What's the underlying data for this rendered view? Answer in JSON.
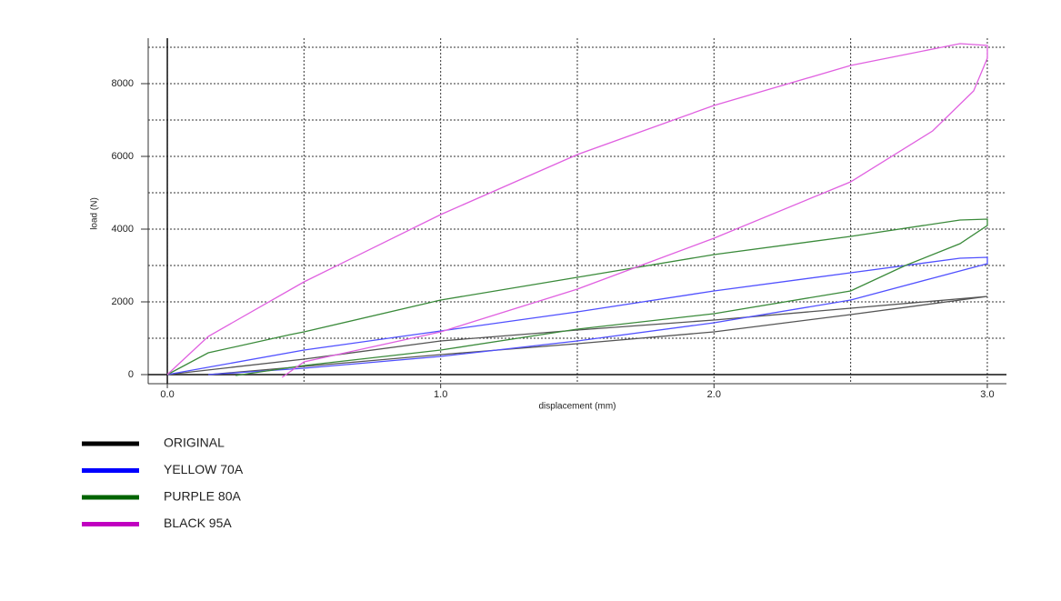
{
  "chart_data": {
    "type": "line",
    "x_label": "displacement (mm)",
    "y_label": "load (N)",
    "xlim": [
      -0.07,
      3.07
    ],
    "ylim": [
      -250,
      9250
    ],
    "xticks": [
      {
        "value": 0,
        "label": "0.0"
      },
      {
        "value": 1,
        "label": "1.0"
      },
      {
        "value": 2,
        "label": "2.0"
      },
      {
        "value": 3,
        "label": "3.0"
      }
    ],
    "yticks": [
      0,
      2000,
      4000,
      6000,
      8000
    ],
    "xminor": [
      0.5,
      1.5,
      2.5
    ],
    "yminor": [
      1000,
      3000,
      5000,
      7000,
      9000
    ],
    "grid": true,
    "series": [
      {
        "name": "ORIGINAL",
        "color": "#000000",
        "line_color": "#555555",
        "x": [
          0,
          0.5,
          1.0,
          1.5,
          2.0,
          2.5,
          3.0,
          2.5,
          2.0,
          1.5,
          1.0,
          0.5,
          0.15
        ],
        "values": [
          0,
          425,
          925,
          1225,
          1500,
          1825,
          2150,
          1650,
          1175,
          850,
          550,
          225,
          0
        ]
      },
      {
        "name": "YELLOW 70A",
        "color": "#0000ff",
        "line_color": "#5050ff",
        "x": [
          0,
          0.5,
          1.0,
          1.5,
          2.0,
          2.5,
          2.9,
          3.0,
          3.0,
          2.8,
          2.5,
          2.0,
          1.5,
          1.0,
          0.5,
          0.15
        ],
        "values": [
          0,
          675,
          1200,
          1725,
          2300,
          2800,
          3200,
          3225,
          3050,
          2650,
          2050,
          1425,
          925,
          500,
          175,
          0
        ]
      },
      {
        "name": "PURPLE 80A",
        "color": "#006400",
        "line_color": "#3a8a3a",
        "x": [
          0,
          0.15,
          0.45,
          0.5,
          1.0,
          1.5,
          2.0,
          2.5,
          2.9,
          3.0,
          3.0,
          2.9,
          2.7,
          2.5,
          2.0,
          1.5,
          1.0,
          0.5,
          0.25
        ],
        "values": [
          0,
          600,
          1100,
          1175,
          2050,
          2675,
          3300,
          3800,
          4250,
          4275,
          4100,
          3600,
          3000,
          2300,
          1675,
          1250,
          675,
          250,
          -25
        ]
      },
      {
        "name": "BLACK 95A",
        "color": "#c000c0",
        "line_color": "#e060e0",
        "x": [
          0,
          0.15,
          0.5,
          1.0,
          1.5,
          2.0,
          2.5,
          2.9,
          3.0,
          3.0,
          2.95,
          2.8,
          2.5,
          2.0,
          1.5,
          1.0,
          0.5,
          0.42
        ],
        "values": [
          0,
          1050,
          2550,
          4400,
          6050,
          7400,
          8500,
          9100,
          9050,
          8700,
          7800,
          6700,
          5300,
          3750,
          2350,
          1175,
          350,
          -75
        ]
      }
    ]
  }
}
